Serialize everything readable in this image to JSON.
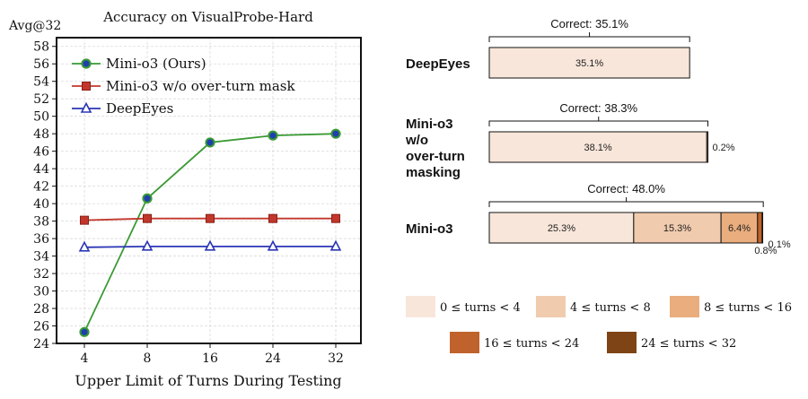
{
  "chart_data": [
    {
      "type": "line",
      "title": "Accuracy on VisualProbe-Hard",
      "ylabel": "Avg@32",
      "xlabel": "Upper Limit of Turns During Testing",
      "categories": [
        "4",
        "8",
        "16",
        "24",
        "32"
      ],
      "ylim": [
        24,
        59
      ],
      "yticks": [
        24,
        26,
        28,
        30,
        32,
        34,
        36,
        38,
        40,
        42,
        44,
        46,
        48,
        50,
        52,
        54,
        56,
        58
      ],
      "grid": true,
      "legend_position": "top-left",
      "series": [
        {
          "name": "Mini-o3 (Ours)",
          "values": [
            25.3,
            40.6,
            47.0,
            47.8,
            48.0
          ],
          "color": "#3a9a34",
          "marker": "circle",
          "marker_fill": "#1f3fae"
        },
        {
          "name": "Mini-o3 w/o over-turn mask",
          "values": [
            38.1,
            38.3,
            38.3,
            38.3,
            38.3
          ],
          "color": "#c2372c",
          "marker": "square",
          "marker_fill": "#c2372c"
        },
        {
          "name": "DeepEyes",
          "values": [
            35.0,
            35.1,
            35.1,
            35.1,
            35.1
          ],
          "color": "#2a36b5",
          "marker": "triangle",
          "marker_fill": "#ffffff"
        }
      ]
    },
    {
      "type": "bar",
      "orientation": "horizontal-stacked",
      "xlim": [
        0,
        50
      ],
      "rows": [
        {
          "label_lines": [
            "DeepEyes"
          ],
          "correct_label": "Correct: 35.1%",
          "correct_total": 35.1,
          "segments": [
            {
              "value": 35.1,
              "label": "35.1%"
            }
          ]
        },
        {
          "label_lines": [
            "Mini-o3",
            "w/o",
            "over-turn",
            "masking"
          ],
          "correct_label": "Correct: 38.3%",
          "correct_total": 38.3,
          "segments": [
            {
              "value": 38.1,
              "label": "38.1%"
            },
            {
              "value": 0.2,
              "label": "0.2%"
            }
          ]
        },
        {
          "label_lines": [
            "Mini-o3"
          ],
          "correct_label": "Correct: 48.0%",
          "correct_total": 48.0,
          "segments": [
            {
              "value": 25.3,
              "label": "25.3%"
            },
            {
              "value": 15.3,
              "label": "15.3%"
            },
            {
              "value": 6.4,
              "label": "6.4%"
            },
            {
              "value": 0.8,
              "label": "0.8%"
            },
            {
              "value": 0.1,
              "label": "0.1%"
            }
          ]
        }
      ],
      "legend_position": "bottom",
      "legend": [
        {
          "label": "0 ≤ turns < 4",
          "color": "#f8e6da"
        },
        {
          "label": "4 ≤ turns < 8",
          "color": "#f1cbae"
        },
        {
          "label": "8 ≤ turns < 16",
          "color": "#e9ad7e"
        },
        {
          "label": "16 ≤ turns < 24",
          "color": "#c0622b"
        },
        {
          "label": "24 ≤ turns < 32",
          "color": "#7e4416"
        }
      ]
    }
  ]
}
